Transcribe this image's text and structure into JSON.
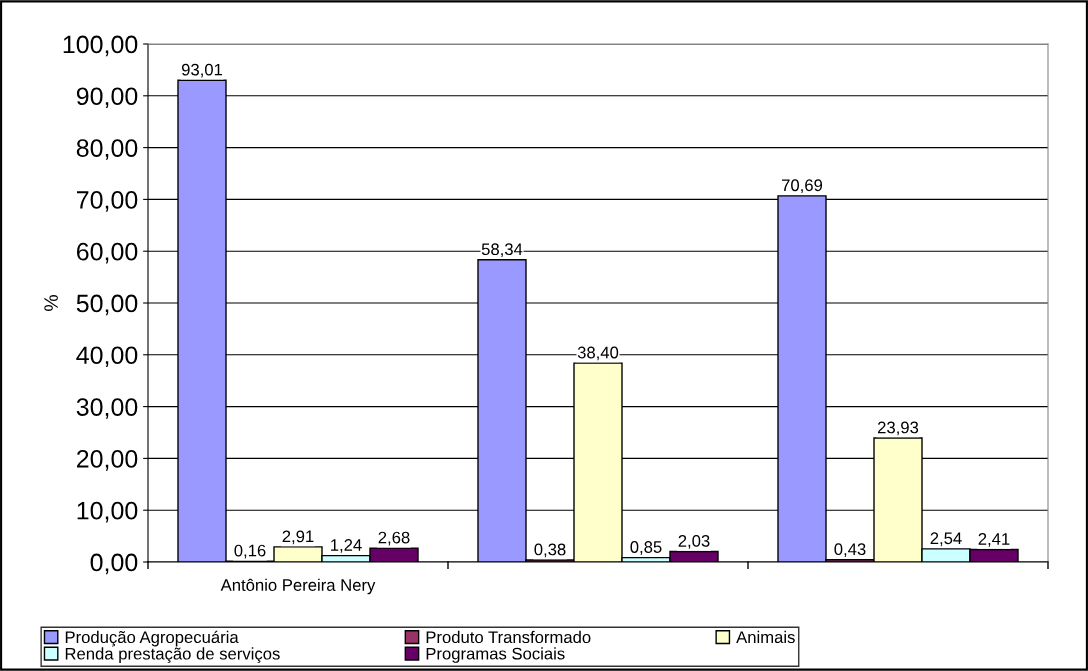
{
  "chart_data": {
    "type": "bar",
    "ylabel": "%",
    "categories": [
      "Antônio Pereira Nery",
      null,
      null
    ],
    "series": [
      {
        "name": "Produção Agropecuária",
        "color": "#9999ff",
        "values": [
          93.01,
          58.34,
          70.69
        ],
        "value_labels": [
          "93,01",
          "58,34",
          "70,69"
        ]
      },
      {
        "name": "Produto Transformado",
        "color": "#993366",
        "values": [
          0.16,
          0.38,
          0.43
        ],
        "value_labels": [
          "0,16",
          "0,38",
          "0,43"
        ]
      },
      {
        "name": "Animais",
        "color": "#ffffcc",
        "values": [
          2.91,
          38.4,
          23.93
        ],
        "value_labels": [
          "2,91",
          "38,40",
          "23,93"
        ]
      },
      {
        "name": "Renda prestação de serviços",
        "color": "#ccffff",
        "values": [
          1.24,
          0.85,
          2.54
        ],
        "value_labels": [
          "1,24",
          "0,85",
          "2,54"
        ]
      },
      {
        "name": "Programas Sociais",
        "color": "#660066",
        "values": [
          2.68,
          2.03,
          2.41
        ],
        "value_labels": [
          "2,68",
          "2,03",
          "2,41"
        ]
      }
    ],
    "ylim": [
      0,
      100
    ],
    "yticks": [
      {
        "value": 0,
        "label": "0,00"
      },
      {
        "value": 10,
        "label": "10,00"
      },
      {
        "value": 20,
        "label": "20,00"
      },
      {
        "value": 30,
        "label": "30,00"
      },
      {
        "value": 40,
        "label": "40,00"
      },
      {
        "value": 50,
        "label": "50,00"
      },
      {
        "value": 60,
        "label": "60,00"
      },
      {
        "value": 70,
        "label": "70,00"
      },
      {
        "value": 80,
        "label": "80,00"
      },
      {
        "value": 90,
        "label": "90,00"
      },
      {
        "value": 100,
        "label": "100,00"
      }
    ],
    "grid": "y",
    "legend": "bottom"
  }
}
